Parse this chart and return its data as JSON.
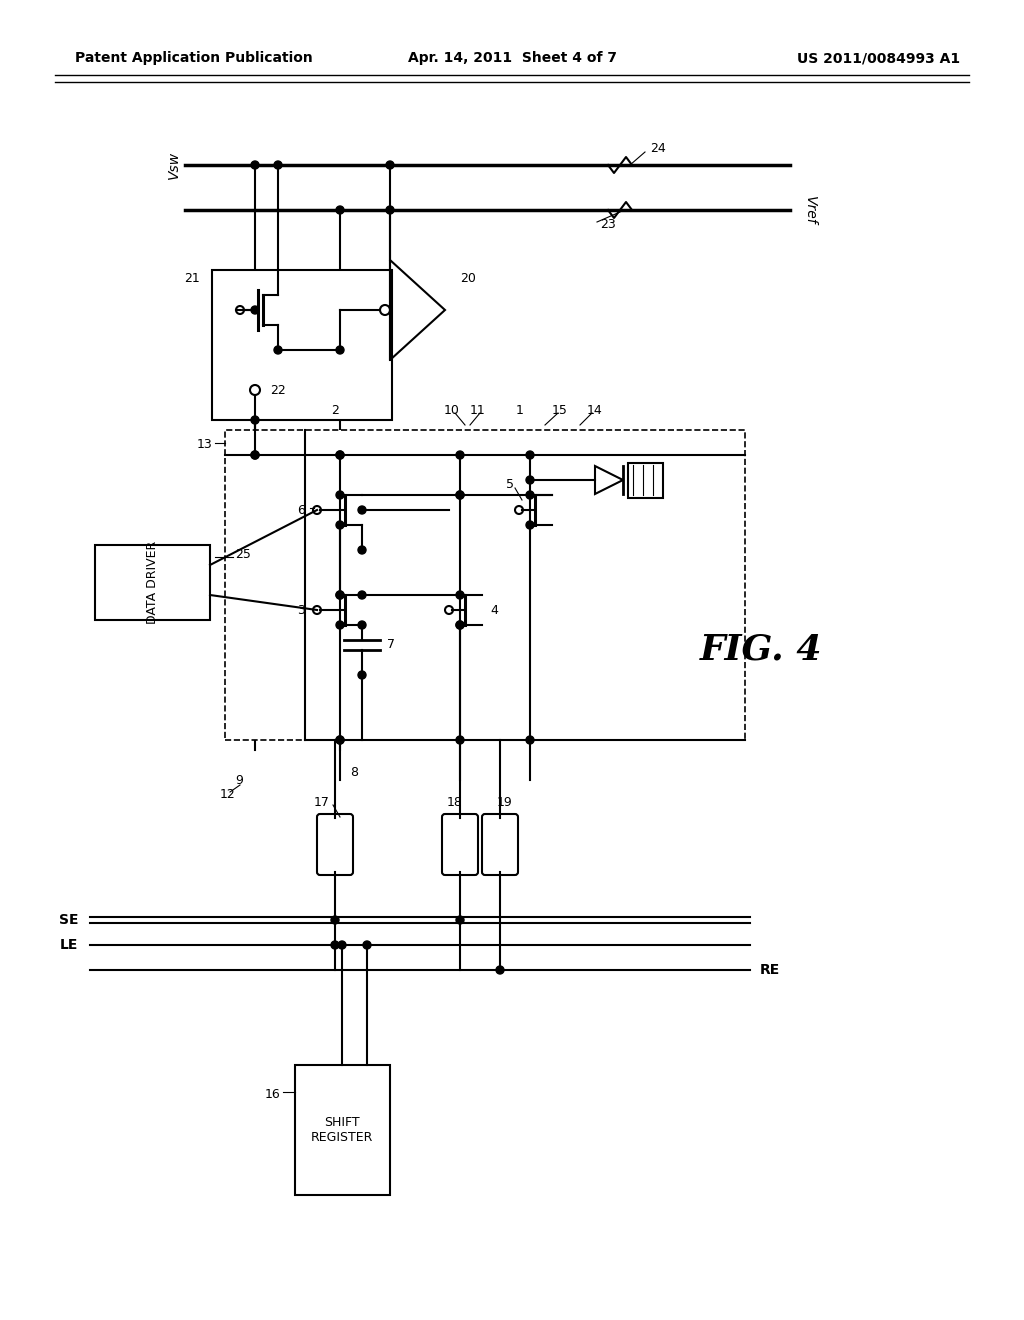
{
  "title_left": "Patent Application Publication",
  "title_center": "Apr. 14, 2011  Sheet 4 of 7",
  "title_right": "US 2011/0084993 A1",
  "fig_label": "FIG. 4",
  "bg_color": "#ffffff",
  "line_color": "#000000"
}
